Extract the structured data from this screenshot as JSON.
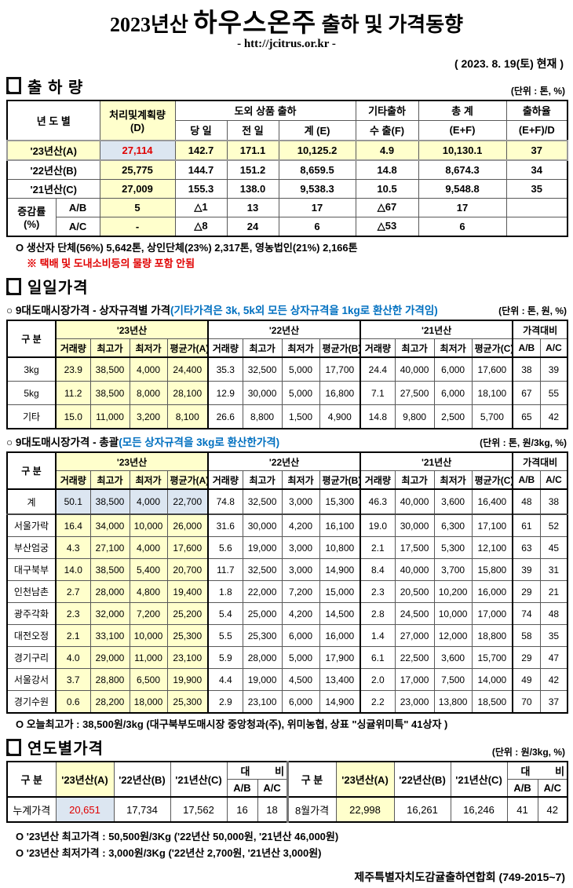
{
  "page": {
    "title_prefix": "2023년산",
    "title_product": "하우스온주",
    "title_suffix": "출하 및 가격동향",
    "url": "- htt://jcitrus.or.kr -",
    "asof": "( 2023. 8. 19(토) 현재 )",
    "footer": "제주특별자치도감귤출하연합회 (749-2015~7)"
  },
  "colors": {
    "highlight_yellow": "#FFFFCC",
    "highlight_blue": "#DCE6F1",
    "alert_red": "#E00000",
    "note_blue": "#0070C0"
  },
  "shipment": {
    "title": "출 하 량",
    "unit": "(단위 : 톤, %)",
    "h": {
      "year": "년 도 별",
      "plan1": "처리및계획량",
      "plan2": "(D)",
      "group": "도외 상품 출하",
      "day": "당 일",
      "prev": "전 일",
      "sum": "계 (E)",
      "etc1": "기타출하",
      "etc2": "수 출(F)",
      "tot1": "총   계",
      "tot2": "(E+F)",
      "rate1": "출하율",
      "rate2": "(E+F)/D"
    },
    "rows": {
      "a": {
        "label": "'23년산(A)",
        "d": "27,114",
        "day": "142.7",
        "prev": "171.1",
        "sum": "10,125.2",
        "exp": "4.9",
        "tot": "10,130.1",
        "rate": "37"
      },
      "b": {
        "label": "'22년산(B)",
        "d": "25,775",
        "day": "144.7",
        "prev": "151.2",
        "sum": "8,659.5",
        "exp": "14.8",
        "tot": "8,674.3",
        "rate": "34"
      },
      "c": {
        "label": "'21년산(C)",
        "d": "27,009",
        "day": "155.3",
        "prev": "138.0",
        "sum": "9,538.3",
        "exp": "10.5",
        "tot": "9,548.8",
        "rate": "35"
      },
      "chg1": "증감률",
      "chg2": "(%)",
      "ab": {
        "label": "A/B",
        "d": "5",
        "day": "△1",
        "prev": "13",
        "sum": "17",
        "exp": "△67",
        "tot": "17",
        "rate": ""
      },
      "ac": {
        "label": "A/C",
        "d": "-",
        "day": "△8",
        "prev": "24",
        "sum": "6",
        "exp": "△53",
        "tot": "6",
        "rate": ""
      }
    },
    "note1": "O 생산자 단체(56%) 5,642톤, 상인단체(23%) 2,317톤, 영농법인(21%) 2,166톤",
    "note2": "※ 택배 및 도내소비등의 물량 포함 안됨"
  },
  "daily": {
    "title": "일일가격",
    "headers": {
      "label": "구  분",
      "y23": "'23년산",
      "y22": "'22년산",
      "y21": "'21년산",
      "cmp": "가격대비",
      "vol": "거래량",
      "high": "최고가",
      "low": "최저가",
      "avg_a": "평균가(A)",
      "avg_b": "평균가(B)",
      "avg_c": "평균가(C)",
      "ab": "A/B",
      "ac": "A/C"
    },
    "spec": {
      "heading": "○ 9대도매시장가격 - 상자규격별 가격",
      "note": "(기타가격은 3k, 5k외 모든 상자규격을 1kg로 환산한 가격임)",
      "unit": "(단위 : 톤, 원, %)",
      "rows": [
        [
          "3kg",
          "23.9",
          "38,500",
          "4,000",
          "24,400",
          "35.3",
          "32,500",
          "5,000",
          "17,700",
          "24.4",
          "40,000",
          "6,000",
          "17,600",
          "38",
          "39"
        ],
        [
          "5kg",
          "11.2",
          "38,500",
          "8,000",
          "28,100",
          "12.9",
          "30,000",
          "5,000",
          "16,800",
          "7.1",
          "27,500",
          "6,000",
          "18,100",
          "67",
          "55"
        ],
        [
          "기타",
          "15.0",
          "11,000",
          "3,200",
          "8,100",
          "26.6",
          "8,800",
          "1,500",
          "4,900",
          "14.8",
          "9,800",
          "2,500",
          "5,700",
          "65",
          "42"
        ]
      ]
    },
    "total": {
      "heading": "○ 9대도매시장가격 - 총괄",
      "note": "(모든 상자규격을 3kg로 환산한가격)",
      "unit": "(단위 : 톤, 원/3kg, %)",
      "sum_row": [
        "계",
        "50.1",
        "38,500",
        "4,000",
        "22,700",
        "74.8",
        "32,500",
        "3,000",
        "15,300",
        "46.3",
        "40,000",
        "3,600",
        "16,400",
        "48",
        "38"
      ],
      "rows": [
        [
          "서울가락",
          "16.4",
          "34,000",
          "10,000",
          "26,000",
          "31.6",
          "30,000",
          "4,200",
          "16,100",
          "19.0",
          "30,000",
          "6,300",
          "17,100",
          "61",
          "52"
        ],
        [
          "부산엄궁",
          "4.3",
          "27,100",
          "4,000",
          "17,600",
          "5.6",
          "19,000",
          "3,000",
          "10,800",
          "2.1",
          "17,500",
          "5,300",
          "12,100",
          "63",
          "45"
        ],
        [
          "대구북부",
          "14.0",
          "38,500",
          "5,400",
          "20,700",
          "11.7",
          "32,500",
          "3,000",
          "14,900",
          "8.4",
          "40,000",
          "3,700",
          "15,800",
          "39",
          "31"
        ],
        [
          "인천남촌",
          "2.7",
          "28,000",
          "4,800",
          "19,400",
          "1.8",
          "22,000",
          "7,200",
          "15,000",
          "2.3",
          "20,500",
          "10,200",
          "16,000",
          "29",
          "21"
        ],
        [
          "광주각화",
          "2.3",
          "32,000",
          "7,200",
          "25,200",
          "5.4",
          "25,000",
          "4,200",
          "14,500",
          "2.8",
          "24,500",
          "10,000",
          "17,000",
          "74",
          "48"
        ],
        [
          "대전오정",
          "2.1",
          "33,100",
          "10,000",
          "25,300",
          "5.5",
          "25,300",
          "6,000",
          "16,000",
          "1.4",
          "27,000",
          "12,000",
          "18,800",
          "58",
          "35"
        ],
        [
          "경기구리",
          "4.0",
          "29,000",
          "11,000",
          "23,100",
          "5.9",
          "28,000",
          "5,000",
          "17,900",
          "6.1",
          "22,500",
          "3,600",
          "15,700",
          "29",
          "47"
        ],
        [
          "서울강서",
          "3.7",
          "28,800",
          "6,500",
          "19,900",
          "4.4",
          "19,000",
          "4,500",
          "13,400",
          "2.0",
          "17,000",
          "7,500",
          "14,000",
          "49",
          "42"
        ],
        [
          "경기수원",
          "0.6",
          "28,200",
          "18,000",
          "25,300",
          "2.9",
          "23,100",
          "6,000",
          "14,900",
          "2.2",
          "23,000",
          "13,800",
          "18,500",
          "70",
          "37"
        ]
      ]
    },
    "today_note": "O 오늘최고가 : 38,500원/3kg (대구북부도매시장 중앙청과(주), 위미농협, 상표 \"싱귤위미특\" 41상자 )"
  },
  "yearly": {
    "title": "연도별가격",
    "unit": "(단위 : 원/3kg, %)",
    "h": {
      "label": "구  분",
      "a": "'23년산(A)",
      "b": "'22년산(B)",
      "c": "'21년산(C)",
      "cmp": "대 비",
      "ab": "A/B",
      "ac": "A/C"
    },
    "left": {
      "label": "누계가격",
      "a": "20,651",
      "b": "17,734",
      "c": "17,562",
      "ab": "16",
      "ac": "18"
    },
    "right": {
      "label": "8월가격",
      "a": "22,998",
      "b": "16,261",
      "c": "16,246",
      "ab": "41",
      "ac": "42"
    },
    "note1": "O '23년산 최고가격 : 50,500원/3Kg ('22년산 50,000원, '21년산 46,000원)",
    "note2": "O '23년산 최저가격 :  3,000원/3Kg ('22년산  2,700원, '21년산  3,000원)"
  }
}
